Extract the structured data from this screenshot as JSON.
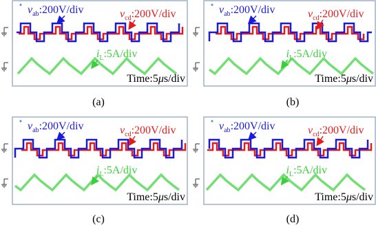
{
  "panels": [
    {
      "caption": "(a)",
      "v_ab": {
        "symbol": "v",
        "subscript": "ab",
        "scale": ":200V/div"
      },
      "v_cd": {
        "symbol": "v",
        "subscript": "cd",
        "scale": ":200V/div"
      },
      "i_L": {
        "symbol": "i",
        "subscript": "L",
        "scale": ":5A/div"
      },
      "time": {
        "prefix": "Time:5",
        "unit_symbol": "μ",
        "suffix": "s/div"
      }
    },
    {
      "caption": "(b)",
      "v_ab": {
        "symbol": "v",
        "subscript": "ab",
        "scale": ":200V/div"
      },
      "v_cd": {
        "symbol": "v",
        "subscript": "cd",
        "scale": ":200V/div"
      },
      "i_L": {
        "symbol": "i",
        "subscript": "L",
        "scale": ":5A/div"
      },
      "time": {
        "prefix": "Time:5",
        "unit_symbol": "μ",
        "suffix": "s/div"
      }
    },
    {
      "caption": "(c)",
      "v_ab": {
        "symbol": "v",
        "subscript": "ab",
        "scale": ":200V/div"
      },
      "v_cd": {
        "symbol": "v",
        "subscript": "cd",
        "scale": ":200V/div"
      },
      "i_L": {
        "symbol": "i",
        "subscript": "L",
        "scale": ":5A/div"
      },
      "time": {
        "prefix": "Time:5",
        "unit_symbol": "μ",
        "suffix": "s/div"
      }
    },
    {
      "caption": "(d)",
      "v_ab": {
        "symbol": "v",
        "subscript": "ab",
        "scale": ":200V/div"
      },
      "v_cd": {
        "symbol": "v",
        "subscript": "cd",
        "scale": ":200V/div"
      },
      "i_L": {
        "symbol": "i",
        "subscript": "L",
        "scale": ":5A/div"
      },
      "time": {
        "prefix": "Time:5",
        "unit_symbol": "μ",
        "suffix": "s/div"
      }
    }
  ]
}
